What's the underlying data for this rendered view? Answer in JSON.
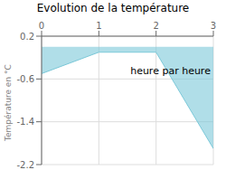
{
  "chart_data": {
    "type": "area",
    "title": "Evolution de la température",
    "ylabel": "Température en °C",
    "x": [
      0,
      1,
      2,
      3
    ],
    "series": [
      {
        "name": "Température",
        "color": "#7bc8d8",
        "values": [
          -0.5,
          -0.1,
          -0.1,
          -1.9
        ]
      }
    ],
    "xlim": [
      0,
      3
    ],
    "xticks": [
      0,
      1,
      2,
      3
    ],
    "ylim": [
      -2.2,
      0.2
    ],
    "yticks": [
      0.2,
      -0.6,
      -1.4,
      -2.2
    ],
    "grid": true,
    "annotations": [
      {
        "text": "heure par heure",
        "x": 1.55,
        "y": -0.45
      }
    ]
  }
}
